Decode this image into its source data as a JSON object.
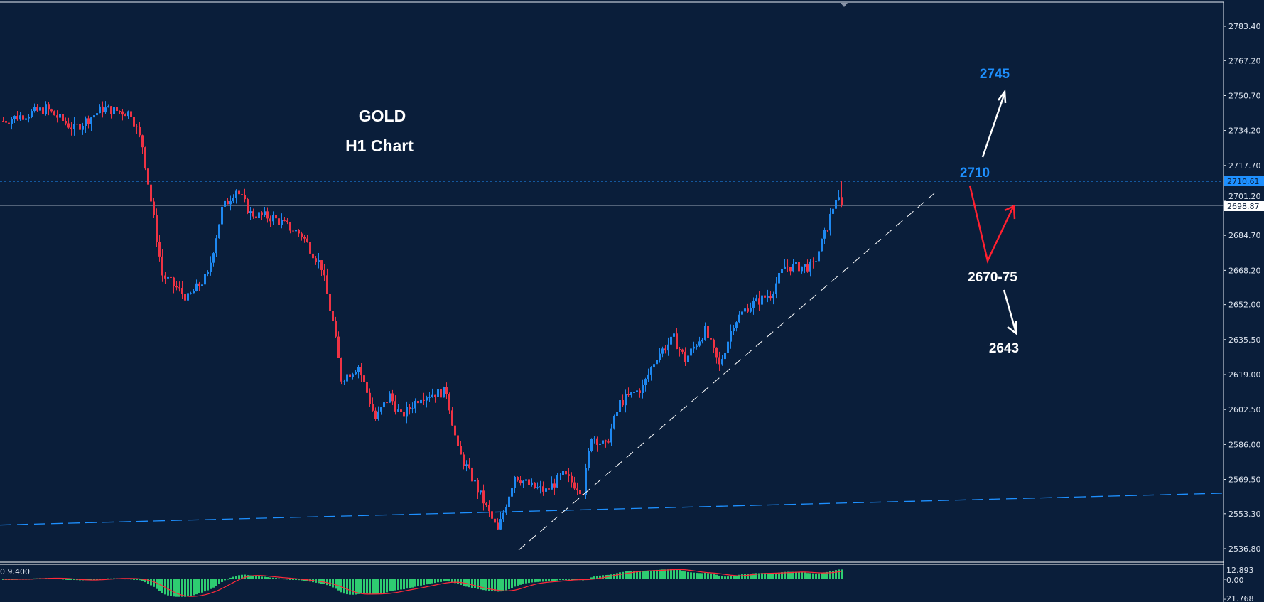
{
  "chart_data": {
    "type": "candlestick",
    "title": "GOLD",
    "subtitle": "H1 Chart",
    "symbol": "GOLD",
    "timeframe": "H1",
    "y_ticks": [
      "2783.40",
      "2767.20",
      "2750.70",
      "2734.20",
      "2717.70",
      "2701.20",
      "2684.70",
      "2668.20",
      "2652.00",
      "2635.50",
      "2619.00",
      "2602.50",
      "2586.00",
      "2569.50",
      "2553.30",
      "2536.80"
    ],
    "ylim": [
      2530,
      2790
    ],
    "current_price": "2698.87",
    "high_line_price": "2710.61",
    "approx_close_path": [
      {
        "bar": 0,
        "close": 2738.8
      },
      {
        "bar": 15,
        "close": 2744.5
      },
      {
        "bar": 25,
        "close": 2735
      },
      {
        "bar": 35,
        "close": 2744.5
      },
      {
        "bar": 45,
        "close": 2742.5
      },
      {
        "bar": 49,
        "close": 2727
      },
      {
        "bar": 52,
        "close": 2701
      },
      {
        "bar": 56,
        "close": 2666
      },
      {
        "bar": 65,
        "close": 2655
      },
      {
        "bar": 72,
        "close": 2666
      },
      {
        "bar": 77,
        "close": 2697
      },
      {
        "bar": 82,
        "close": 2706.5
      },
      {
        "bar": 87,
        "close": 2695
      },
      {
        "bar": 95,
        "close": 2693
      },
      {
        "bar": 105,
        "close": 2685
      },
      {
        "bar": 112,
        "close": 2670
      },
      {
        "bar": 116,
        "close": 2643.5
      },
      {
        "bar": 119,
        "close": 2617
      },
      {
        "bar": 125,
        "close": 2623
      },
      {
        "bar": 131,
        "close": 2598
      },
      {
        "bar": 136,
        "close": 2609
      },
      {
        "bar": 140,
        "close": 2599
      },
      {
        "bar": 147,
        "close": 2609
      },
      {
        "bar": 156,
        "close": 2611
      },
      {
        "bar": 160,
        "close": 2583
      },
      {
        "bar": 166,
        "close": 2567.6
      },
      {
        "bar": 174,
        "close": 2545
      },
      {
        "bar": 180,
        "close": 2571.5
      },
      {
        "bar": 186,
        "close": 2566
      },
      {
        "bar": 191,
        "close": 2564
      },
      {
        "bar": 197,
        "close": 2571.5
      },
      {
        "bar": 204,
        "close": 2564
      },
      {
        "bar": 207,
        "close": 2590.5
      },
      {
        "bar": 212,
        "close": 2585
      },
      {
        "bar": 217,
        "close": 2605.6
      },
      {
        "bar": 225,
        "close": 2613
      },
      {
        "bar": 230,
        "close": 2628
      },
      {
        "bar": 236,
        "close": 2636
      },
      {
        "bar": 240,
        "close": 2626
      },
      {
        "bar": 247,
        "close": 2639.8
      },
      {
        "bar": 252,
        "close": 2623
      },
      {
        "bar": 257,
        "close": 2643.5
      },
      {
        "bar": 262,
        "close": 2651
      },
      {
        "bar": 270,
        "close": 2657
      },
      {
        "bar": 275,
        "close": 2670
      },
      {
        "bar": 285,
        "close": 2670
      },
      {
        "bar": 290,
        "close": 2689
      },
      {
        "bar": 293,
        "close": 2702.5
      },
      {
        "bar": 295,
        "close": 2698.87
      }
    ],
    "moving_average": {
      "color": "#1e90ff",
      "style": "dashed",
      "start": 2548,
      "end": 2563
    },
    "trendline": {
      "style": "dashed",
      "color": "#ffffff"
    },
    "annotations": {
      "target_up": "2745",
      "resistance": "2710",
      "support": "2670-75",
      "target_down": "2643"
    },
    "indicator": {
      "label": "0 9.400",
      "ticks": [
        "12.893",
        "0.00",
        "-21.768"
      ],
      "histogram_color": "#2ecc71",
      "signal_color": "#ff2b3a"
    },
    "colors": {
      "background": "#0a1e3a",
      "bull": "#1e88f0",
      "bear": "#ee3344",
      "accent": "#1e90ff"
    }
  }
}
